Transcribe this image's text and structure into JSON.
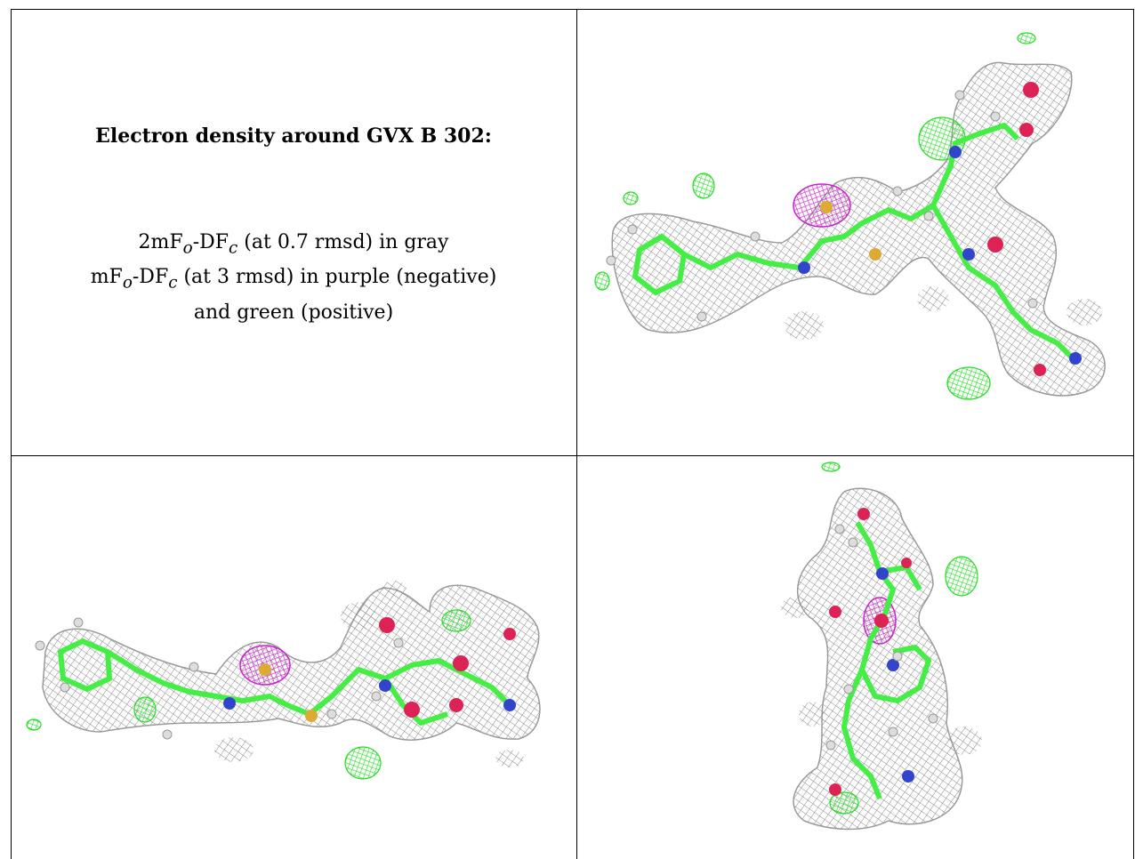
{
  "caption": {
    "title": "Electron density around GVX B 302:",
    "line1_main": "2mF",
    "line1_sub1": "o",
    "line1_mid": "-DF",
    "line1_sub2": "c",
    "line1_rest": " (at 0.7 rmsd) in gray",
    "line2_main": "mF",
    "line2_sub1": "o",
    "line2_mid": "-DF",
    "line2_sub2": "c",
    "line2_rest": " (at 3 rmsd) in purple (negative)",
    "line3": "and green (positive)"
  },
  "colors": {
    "mesh_gray": "#8a8a8a",
    "carbon_green": "#44ee44",
    "positive_green": "#22dd22",
    "negative_purple": "#cc22cc",
    "nitrogen_blue": "#3344cc",
    "oxygen_red": "#dd2255",
    "sulfur_yellow": "#ddaa33",
    "hydrogen_white": "#dddddd"
  },
  "panels": [
    {
      "name": "density-view-top-right"
    },
    {
      "name": "density-view-bottom-left"
    },
    {
      "name": "density-view-bottom-right"
    }
  ]
}
